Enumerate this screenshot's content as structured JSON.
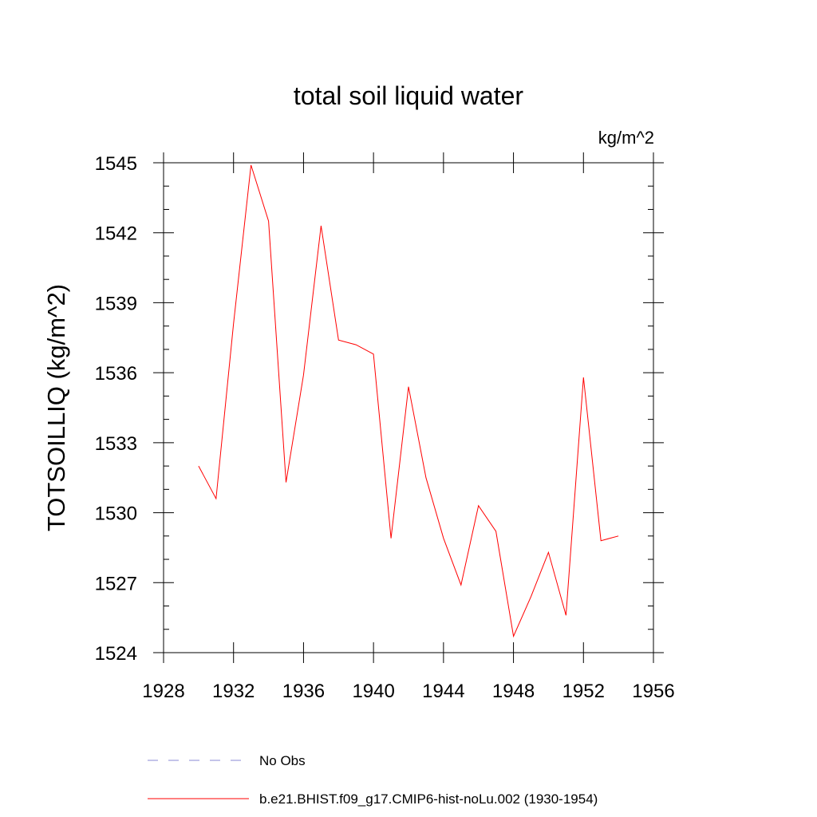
{
  "chart_data": {
    "type": "line",
    "title": "total soil liquid water",
    "units": "kg/m^2",
    "ylabel": "TOTSOILLIQ  (kg/m^2)",
    "xlabel": "",
    "xlim": [
      1928,
      1956
    ],
    "ylim": [
      1524,
      1545
    ],
    "x_ticks": [
      1928,
      1932,
      1936,
      1940,
      1944,
      1948,
      1952,
      1956
    ],
    "y_ticks": [
      1524,
      1527,
      1530,
      1533,
      1536,
      1539,
      1542,
      1545
    ],
    "x_tick_labels": [
      "1928",
      "1932",
      "1936",
      "1940",
      "1944",
      "1948",
      "1952",
      "1956"
    ],
    "y_tick_labels": [
      "1524",
      "1527",
      "1530",
      "1533",
      "1536",
      "1539",
      "1542",
      "1545"
    ],
    "grid": false,
    "legend_position": "bottom",
    "series": [
      {
        "name": "b.e21.BHIST.f09_g17.CMIP6-hist-noLu.002 (1930-1954)",
        "color": "#ff0000",
        "dash": "solid",
        "x": [
          1930,
          1931,
          1932,
          1933,
          1934,
          1935,
          1936,
          1937,
          1938,
          1939,
          1940,
          1941,
          1942,
          1943,
          1944,
          1945,
          1946,
          1947,
          1948,
          1949,
          1950,
          1951,
          1952,
          1953,
          1954
        ],
        "y": [
          1532.0,
          1530.6,
          1538.1,
          1544.9,
          1542.5,
          1531.3,
          1535.9,
          1542.3,
          1537.4,
          1537.2,
          1536.8,
          1528.9,
          1535.4,
          1531.5,
          1528.9,
          1526.9,
          1530.3,
          1529.2,
          1524.7,
          1526.4,
          1528.3,
          1525.6,
          1535.8,
          1528.8,
          1529.0
        ]
      }
    ],
    "legend": [
      {
        "label": "No Obs",
        "color": "#8a8ad6",
        "dash": "dashed"
      },
      {
        "label": "b.e21.BHIST.f09_g17.CMIP6-hist-noLu.002 (1930-1954)",
        "color": "#ff0000",
        "dash": "solid"
      }
    ]
  }
}
